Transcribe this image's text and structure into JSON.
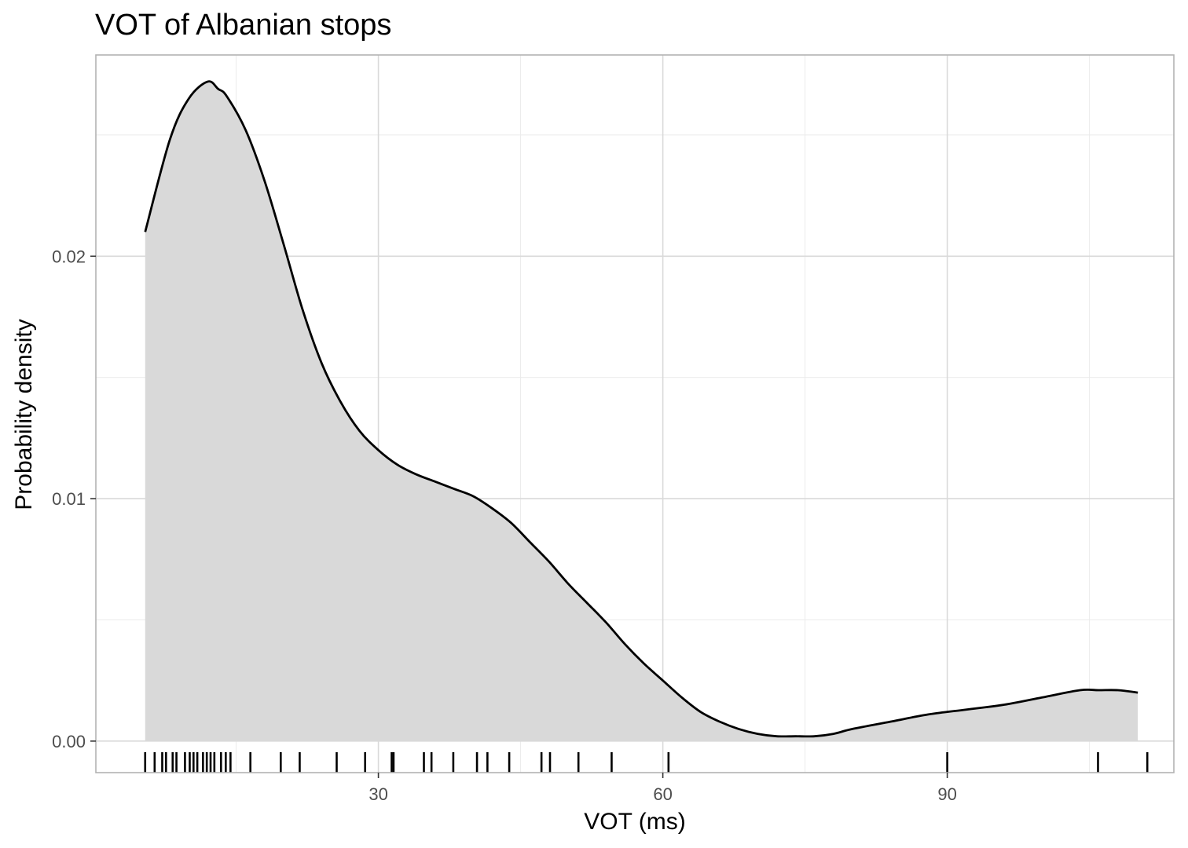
{
  "chart_data": {
    "type": "area",
    "title": "VOT of Albanian stops",
    "xlabel": "VOT (ms)",
    "ylabel": "Probability density",
    "xlim": [
      0.2,
      113.9
    ],
    "ylim": [
      -0.0013,
      0.0283
    ],
    "x_ticks": [
      {
        "value": 30,
        "label": "30"
      },
      {
        "value": 60,
        "label": "60"
      },
      {
        "value": 90,
        "label": "90"
      }
    ],
    "y_ticks": [
      {
        "value": 0.0,
        "label": "0.00"
      },
      {
        "value": 0.01,
        "label": "0.01"
      },
      {
        "value": 0.02,
        "label": "0.02"
      }
    ],
    "grid": true,
    "colors": {
      "fill": "#d9d9d9",
      "line": "#000000",
      "grid": "#ebebeb",
      "panel_border": "#b3b3b3"
    },
    "density": {
      "x": [
        5.4,
        8,
        10,
        12,
        13.1,
        14,
        16,
        18,
        20,
        22,
        24,
        26,
        28,
        30,
        32,
        34,
        36,
        38,
        40,
        42,
        44,
        46,
        48,
        50,
        52,
        54,
        56,
        58,
        60,
        62,
        64,
        66,
        68,
        70,
        72,
        74,
        76,
        78,
        80,
        84,
        88,
        92,
        96,
        100,
        104,
        106,
        108,
        110.1
      ],
      "y": [
        0.021,
        0.0248,
        0.0265,
        0.0272,
        0.0269,
        0.0266,
        0.0252,
        0.0231,
        0.0205,
        0.0178,
        0.0156,
        0.014,
        0.0128,
        0.012,
        0.0114,
        0.011,
        0.0107,
        0.0104,
        0.0101,
        0.0096,
        0.009,
        0.0082,
        0.0074,
        0.0065,
        0.0057,
        0.0049,
        0.004,
        0.0032,
        0.0025,
        0.0018,
        0.0012,
        0.0008,
        0.0005,
        0.0003,
        0.0002,
        0.0002,
        0.0002,
        0.0003,
        0.0005,
        0.0008,
        0.0011,
        0.0013,
        0.0015,
        0.0018,
        0.0021,
        0.0021,
        0.0021,
        0.002
      ]
    },
    "rug": [
      5.4,
      6.4,
      7.2,
      7.6,
      8.3,
      8.7,
      9.6,
      10.1,
      10.5,
      10.9,
      11.5,
      11.9,
      12.3,
      12.7,
      13.4,
      13.9,
      14.4,
      16.5,
      19.7,
      21.7,
      25.6,
      28.6,
      31.4,
      31.6,
      34.8,
      35.6,
      37.9,
      40.4,
      41.5,
      43.8,
      47.2,
      48.1,
      51.1,
      54.6,
      60.6,
      90,
      105.9,
      111.1
    ]
  }
}
